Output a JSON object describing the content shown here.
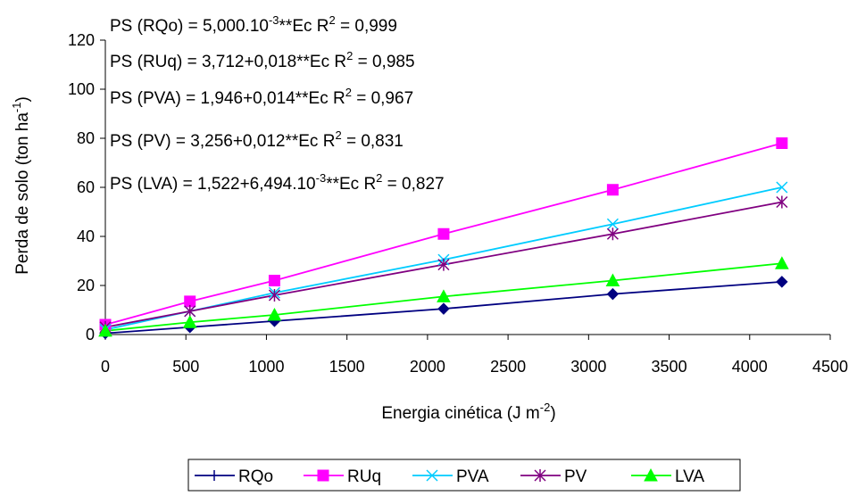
{
  "chart_data": {
    "type": "line",
    "title": "",
    "xlabel": {
      "main": "Energia cinética (J m",
      "sup": "-2",
      "tail": ")"
    },
    "ylabel": {
      "main": "Perda de solo (ton ha",
      "sup": "-1",
      "tail": ")"
    },
    "xlim": [
      0,
      4500
    ],
    "ylim": [
      0,
      120
    ],
    "xticks": [
      "0",
      "500",
      "1000",
      "1500",
      "2000",
      "2500",
      "3000",
      "3500",
      "4000",
      "4500"
    ],
    "yticks": [
      "0",
      "20",
      "40",
      "60",
      "80",
      "100",
      "120"
    ],
    "grid": false,
    "legend_position": "bottom",
    "x": [
      0,
      525,
      1050,
      2100,
      3150,
      4200
    ],
    "series": [
      {
        "name": "RQo",
        "color": "#000080",
        "marker": "diamond",
        "values": [
          0.5,
          3,
          5.5,
          10.5,
          16.5,
          21.5
        ]
      },
      {
        "name": "RUq",
        "color": "#ff00ff",
        "marker": "square",
        "values": [
          4,
          13.5,
          22,
          41,
          59,
          78
        ]
      },
      {
        "name": "PVA",
        "color": "#00ccff",
        "marker": "x",
        "values": [
          2,
          9.5,
          17,
          30.5,
          45,
          60
        ]
      },
      {
        "name": "PV",
        "color": "#800080",
        "marker": "star",
        "values": [
          3,
          9.5,
          16,
          28.5,
          41,
          54
        ]
      },
      {
        "name": "LVA",
        "color": "#00ff00",
        "marker": "triangle",
        "values": [
          1.5,
          5,
          8,
          15.5,
          22,
          29
        ]
      }
    ],
    "annotations": [
      {
        "pre": "PS (RQo) = 5,000.10",
        "sup1": "-3",
        "mid": "**Ec R",
        "sup2": "2",
        "post": " = 0,999"
      },
      {
        "pre": "PS (RUq) = 3,712+0,018**Ec R",
        "sup1": "2",
        "mid": " = 0,985",
        "sup2": "",
        "post": ""
      },
      {
        "pre": "PS (PVA) = 1,946+0,014**Ec R",
        "sup1": "2",
        "mid": " = 0,967",
        "sup2": "",
        "post": ""
      },
      {
        "pre": "PS (PV) = 3,256+0,012**Ec R",
        "sup1": "2",
        "mid": " = 0,831",
        "sup2": "",
        "post": ""
      },
      {
        "pre": "PS (LVA) = 1,522+6,494.10",
        "sup1": "-3",
        "mid": "**Ec R",
        "sup2": "2",
        "post": " = 0,827"
      }
    ]
  }
}
